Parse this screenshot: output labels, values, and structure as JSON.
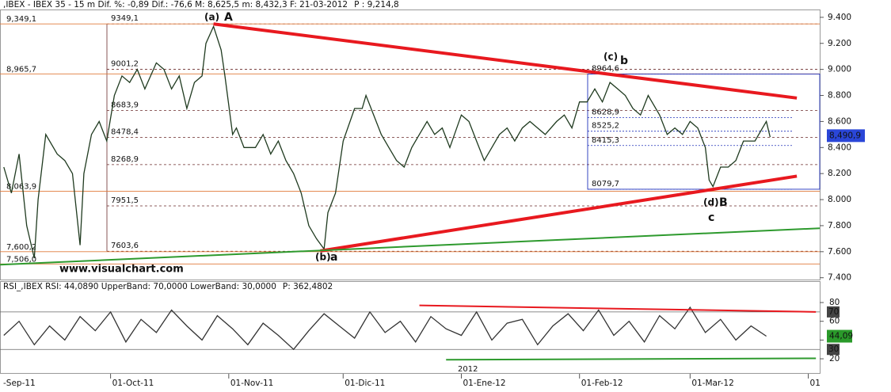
{
  "chart_data": [
    {
      "type": "line",
      "title": ",IBEX - IBEX 35 - 15 m Dif.  %: -0,89 Dif.: -76,6 M: 8,625,5 m: 8,432,3 F: 21-03-2012",
      "title_extra": "P : 9,214,8",
      "watermark": "www.visualchart.com",
      "color": "#1f3a1f",
      "x": [
        2,
        4,
        6,
        8,
        10,
        11,
        13,
        16,
        18,
        20,
        22,
        23,
        25,
        27,
        29,
        31,
        33,
        35,
        37,
        39,
        42,
        44,
        46,
        48,
        50,
        52,
        54,
        55,
        57,
        59,
        60,
        62,
        63,
        65,
        68,
        70,
        72,
        74,
        76,
        78,
        80,
        82,
        84,
        86,
        87,
        89,
        91,
        94,
        96,
        97,
        99,
        101,
        103,
        105,
        107,
        109,
        111,
        113,
        115,
        117,
        119,
        122,
        124,
        126,
        128,
        130,
        132,
        134,
        136,
        138,
        140,
        142,
        144,
        147,
        149,
        151,
        153,
        155,
        157,
        159,
        161,
        163,
        165,
        167,
        169,
        171,
        174,
        176,
        178,
        180,
        182,
        184,
        186,
        187,
        188,
        190,
        192,
        194,
        196,
        199,
        201,
        202,
        203
      ],
      "values": [
        8250,
        8050,
        8350,
        7800,
        7550,
        8000,
        8500,
        8350,
        8300,
        8200,
        7650,
        8200,
        8500,
        8600,
        8450,
        8800,
        8950,
        8900,
        9000,
        8850,
        9050,
        9000,
        8850,
        8950,
        8700,
        8900,
        8950,
        9200,
        9330,
        9150,
        8950,
        8500,
        8550,
        8400,
        8400,
        8500,
        8350,
        8450,
        8300,
        8200,
        8050,
        7800,
        7700,
        7620,
        7900,
        8050,
        8450,
        8700,
        8700,
        8800,
        8650,
        8500,
        8400,
        8300,
        8250,
        8400,
        8500,
        8600,
        8500,
        8550,
        8400,
        8650,
        8600,
        8450,
        8300,
        8400,
        8500,
        8550,
        8450,
        8550,
        8600,
        8550,
        8500,
        8600,
        8650,
        8550,
        8750,
        8750,
        8850,
        8750,
        8900,
        8850,
        8800,
        8700,
        8650,
        8800,
        8650,
        8500,
        8550,
        8500,
        8600,
        8550,
        8400,
        8150,
        8100,
        8250,
        8250,
        8300,
        8450,
        8450,
        8550,
        8600,
        8480
      ],
      "xlim": [
        1,
        216
      ],
      "ylim": [
        7380,
        9460
      ],
      "yticks": [
        {
          "value": 9400,
          "label": "9.400"
        },
        {
          "value": 9200,
          "label": "9.200"
        },
        {
          "value": 9000,
          "label": "9.000"
        },
        {
          "value": 8800,
          "label": "8.800"
        },
        {
          "value": 8600,
          "label": "8.600"
        },
        {
          "value": 8400,
          "label": "8.400"
        },
        {
          "value": 8200,
          "label": "8.200"
        },
        {
          "value": 8000,
          "label": "8.000"
        },
        {
          "value": 7800,
          "label": "7.800"
        },
        {
          "value": 7600,
          "label": "7.600"
        },
        {
          "value": 7400,
          "label": "7.400"
        }
      ],
      "last_value": {
        "value": 8490.9,
        "label": "8,490,9"
      },
      "levels": [
        {
          "value": 9349.1,
          "label": "9349,1"
        },
        {
          "value": 9001.2,
          "label": "9001,2"
        },
        {
          "value": 8683.9,
          "label": "8683,9"
        },
        {
          "value": 8478.4,
          "label": "8478,4"
        },
        {
          "value": 8268.9,
          "label": "8268,9"
        },
        {
          "value": 7951.5,
          "label": "7951,5"
        },
        {
          "value": 7603.6,
          "label": "7603,6"
        }
      ],
      "left_levels": [
        {
          "value": 9349.1,
          "label": "9,349,1"
        },
        {
          "value": 8965.7,
          "label": "8,965,7"
        },
        {
          "value": 8063.9,
          "label": "8,063,9"
        },
        {
          "value": 7600.2,
          "label": "7,600,2"
        },
        {
          "value": 7506.0,
          "label": "7,506,0"
        }
      ],
      "box_levels": [
        {
          "value": 8964.6,
          "label": "8964,6"
        },
        {
          "value": 8628.9,
          "label": "8628,9"
        },
        {
          "value": 8525.2,
          "label": "8525,2"
        },
        {
          "value": 8415.3,
          "label": "8415,3"
        },
        {
          "value": 8079.7,
          "label": "8079,7"
        }
      ],
      "trendlines": [
        {
          "color": "#e8191f",
          "x": [
            57,
            210
          ],
          "values": [
            9349,
            8780
          ]
        },
        {
          "color": "#e8191f",
          "x": [
            85,
            210
          ],
          "values": [
            7606,
            8180
          ]
        },
        {
          "color": "#2e9a2e",
          "x": [
            1,
            216
          ],
          "values": [
            7500,
            7780
          ]
        }
      ],
      "annotations": [
        "(a)",
        "A",
        "(b)",
        "a",
        "(c)",
        "b",
        "(d)",
        "B",
        "c"
      ]
    },
    {
      "type": "line",
      "title": "RSI_,IBEX RSI: 44,0890 UpperBand: 70,0000 LowerBand: 30,0000",
      "title_extra": "P: 362,4802",
      "color": "#333333",
      "x": [
        2,
        6,
        10,
        14,
        18,
        22,
        26,
        30,
        34,
        38,
        42,
        46,
        50,
        54,
        58,
        62,
        66,
        70,
        74,
        78,
        82,
        86,
        90,
        94,
        98,
        102,
        106,
        110,
        114,
        118,
        122,
        126,
        130,
        134,
        138,
        142,
        146,
        150,
        154,
        158,
        162,
        166,
        170,
        174,
        178,
        182,
        186,
        190,
        194,
        198,
        202
      ],
      "values": [
        45,
        60,
        35,
        55,
        40,
        65,
        50,
        70,
        38,
        62,
        48,
        72,
        55,
        40,
        66,
        52,
        35,
        58,
        45,
        30,
        50,
        68,
        55,
        42,
        70,
        48,
        60,
        38,
        65,
        52,
        45,
        70,
        40,
        58,
        62,
        35,
        55,
        68,
        50,
        72,
        45,
        60,
        38,
        66,
        52,
        75,
        48,
        62,
        40,
        55,
        44.09
      ],
      "xlim": [
        1,
        216
      ],
      "ylim": [
        4,
        102
      ],
      "yticks": [
        80,
        60,
        40,
        20
      ],
      "bands": [
        70,
        30
      ],
      "last_value": {
        "value": 44.09,
        "label": "44,09"
      },
      "year_label": "2012",
      "xticks": [
        {
          "value": 0,
          "label": "-Sep-11"
        },
        {
          "value": 30,
          "label": "01-Oct-11"
        },
        {
          "value": 61,
          "label": "01-Nov-11"
        },
        {
          "value": 91,
          "label": "01-Dic-11"
        },
        {
          "value": 122,
          "label": "01-Ene-12"
        },
        {
          "value": 153,
          "label": "01-Feb-12"
        },
        {
          "value": 182,
          "label": "01-Mar-12"
        },
        {
          "value": 213,
          "label": "01"
        }
      ],
      "trendlines": [
        {
          "color": "#e8191f",
          "x": [
            111,
            215
          ],
          "values": [
            77,
            70
          ]
        },
        {
          "color": "#2e9a2e",
          "x": [
            118,
            215
          ],
          "values": [
            19,
            20.5
          ]
        }
      ]
    }
  ]
}
